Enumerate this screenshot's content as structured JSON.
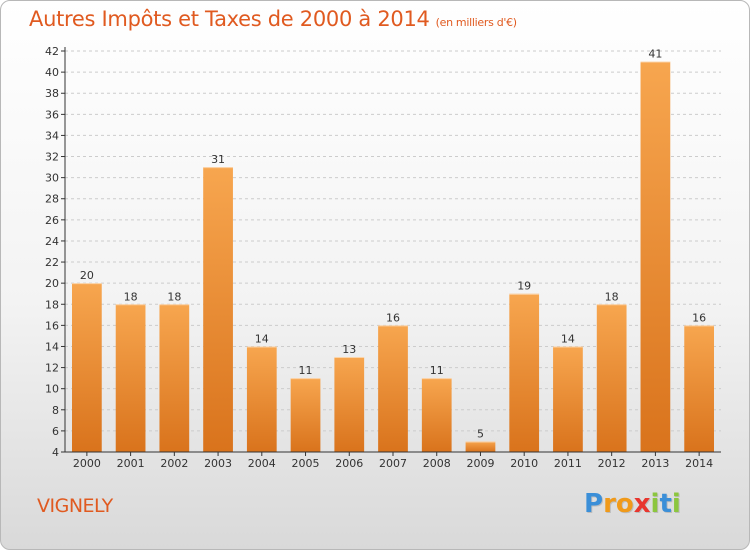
{
  "chart_data": {
    "type": "bar",
    "title": "Autres Impôts et Taxes de 2000 à 2014",
    "subtitle": "(en milliers d'€)",
    "categories": [
      "2000",
      "2001",
      "2002",
      "2003",
      "2004",
      "2005",
      "2006",
      "2007",
      "2008",
      "2009",
      "2010",
      "2011",
      "2012",
      "2013",
      "2014"
    ],
    "values": [
      20,
      18,
      18,
      31,
      14,
      11,
      13,
      16,
      11,
      5,
      19,
      14,
      18,
      41,
      16
    ],
    "ylim": [
      4,
      42
    ],
    "yticks": [
      4,
      6,
      8,
      10,
      12,
      14,
      16,
      18,
      20,
      22,
      24,
      26,
      28,
      30,
      32,
      34,
      36,
      38,
      40,
      42
    ],
    "grid": true,
    "bar_color_top": "#f7a64f",
    "bar_color_bottom": "#d9731c",
    "xlabel": "",
    "ylabel": ""
  },
  "footer": {
    "place": "VIGNELY",
    "logo_letters": [
      "P",
      "r",
      "o",
      "x",
      "i",
      "t",
      "i"
    ],
    "logo_colors": [
      "#3b8fd8",
      "#f09a1a",
      "#f09a1a",
      "#e8362e",
      "#8cc63f",
      "#3b8fd8",
      "#8cc63f"
    ]
  },
  "colors": {
    "title": "#e05a20",
    "axis": "#333333",
    "grid": "#cccccc"
  }
}
